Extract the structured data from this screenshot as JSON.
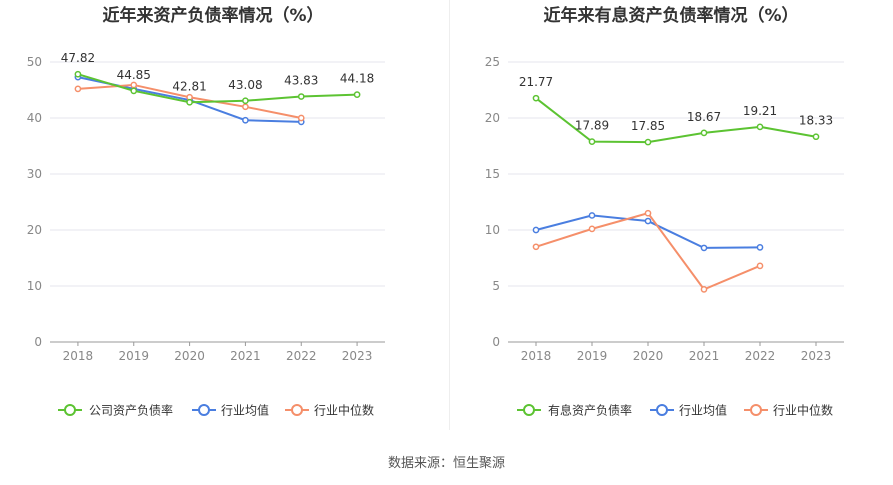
{
  "source": "数据来源：恒生聚源",
  "colors": {
    "company": "#5cc332",
    "industry_avg": "#4a7ee0",
    "industry_median": "#f58f6a",
    "grid": "#e4e4ee",
    "axis": "#999999",
    "tick_text": "#888888"
  },
  "chart_data": [
    {
      "type": "line",
      "title": "近年来资产负债率情况（%）",
      "categories": [
        "2018",
        "2019",
        "2020",
        "2021",
        "2022",
        "2023"
      ],
      "ylim": [
        0,
        50
      ],
      "yticks": [
        0,
        10,
        20,
        30,
        40,
        50
      ],
      "series": [
        {
          "name": "公司资产负债率",
          "role": "company",
          "values": [
            47.82,
            44.85,
            42.81,
            43.08,
            43.83,
            44.18
          ],
          "labels": [
            "47.82",
            "44.85",
            "42.81",
            "43.08",
            "43.83",
            "44.18"
          ]
        },
        {
          "name": "行业均值",
          "role": "industry_avg",
          "values": [
            47.3,
            45.2,
            43.2,
            39.6,
            39.3,
            null
          ]
        },
        {
          "name": "行业中位数",
          "role": "industry_median",
          "values": [
            45.2,
            45.9,
            43.7,
            42.0,
            40.0,
            null
          ]
        }
      ]
    },
    {
      "type": "line",
      "title": "近年来有息资产负债率情况（%）",
      "categories": [
        "2018",
        "2019",
        "2020",
        "2021",
        "2022",
        "2023"
      ],
      "ylim": [
        0,
        25
      ],
      "yticks": [
        0,
        5,
        10,
        15,
        20,
        25
      ],
      "series": [
        {
          "name": "有息资产负债率",
          "role": "company",
          "values": [
            21.77,
            17.89,
            17.85,
            18.67,
            19.21,
            18.33
          ],
          "labels": [
            "21.77",
            "17.89",
            "17.85",
            "18.67",
            "19.21",
            "18.33"
          ]
        },
        {
          "name": "行业均值",
          "role": "industry_avg",
          "values": [
            10.0,
            11.3,
            10.8,
            8.4,
            8.45,
            null
          ]
        },
        {
          "name": "行业中位数",
          "role": "industry_median",
          "values": [
            8.5,
            10.1,
            11.5,
            4.7,
            6.8,
            null
          ]
        }
      ]
    }
  ]
}
